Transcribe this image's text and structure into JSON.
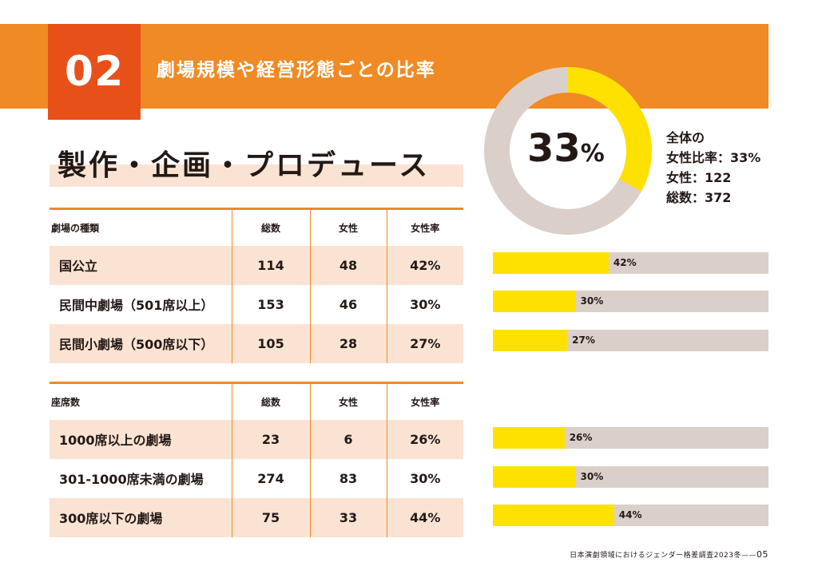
{
  "header": {
    "number": "02",
    "title": "劇場規模や経営形態ごとの比率"
  },
  "section": {
    "title": "製作・企画・プロデュース"
  },
  "overall": {
    "percent_value": 33,
    "percent_num": "33",
    "percent_sign": "%",
    "lines": [
      "全体の",
      "女性比率：33%",
      "女性：122",
      "総数：372"
    ],
    "colors": {
      "female": "#ffe100",
      "rest": "#dbcfca"
    }
  },
  "table1": {
    "headers": [
      "劇場の種類",
      "総数",
      "女性",
      "女性率"
    ],
    "rows": [
      {
        "label": "国公立",
        "total": "114",
        "female": "48",
        "rate": "42%",
        "bar_value": 42
      },
      {
        "label": "民間中劇場（501席以上）",
        "total": "153",
        "female": "46",
        "rate": "30%",
        "bar_value": 30
      },
      {
        "label": "民間小劇場（500席以下）",
        "total": "105",
        "female": "28",
        "rate": "27%",
        "bar_value": 27
      }
    ]
  },
  "table2": {
    "headers": [
      "座席数",
      "総数",
      "女性",
      "女性率"
    ],
    "rows": [
      {
        "label": "1000席以上の劇場",
        "total": "23",
        "female": "6",
        "rate": "26%",
        "bar_value": 26
      },
      {
        "label": "301-1000席未満の劇場",
        "total": "274",
        "female": "83",
        "rate": "30%",
        "bar_value": 30
      },
      {
        "label": "300席以下の劇場",
        "total": "75",
        "female": "33",
        "rate": "44%",
        "bar_value": 44
      }
    ]
  },
  "footer": {
    "text": "日本演劇領域におけるジェンダー格差調査2023冬",
    "page": "05"
  }
}
